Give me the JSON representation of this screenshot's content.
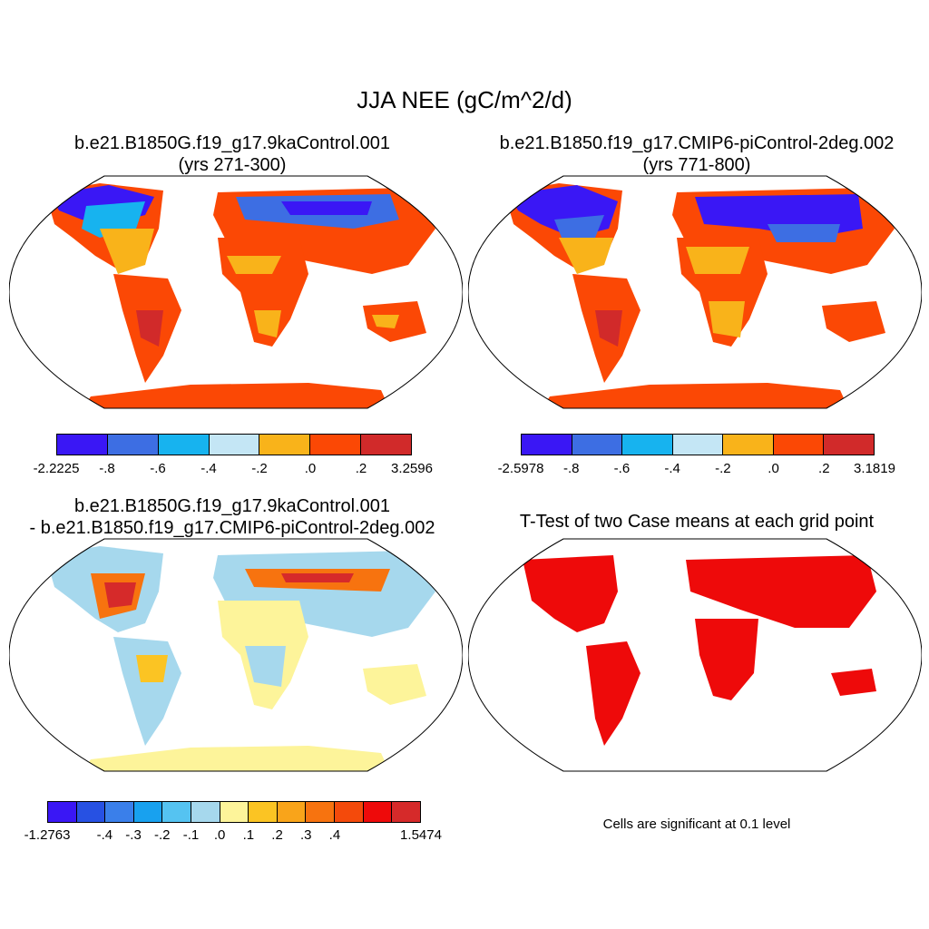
{
  "title": "JJA NEE (gC/m^2/d)",
  "panels": [
    {
      "title_line1": "b.e21.B1850G.f19_g17.9kaControl.001",
      "title_line2": "(yrs 271-300)"
    },
    {
      "title_line1": "b.e21.B1850.f19_g17.CMIP6-piControl-2deg.002",
      "title_line2": "(yrs 771-800)"
    },
    {
      "title_line1": "b.e21.B1850G.f19_g17.9kaControl.001",
      "title_line2": "- b.e21.B1850.f19_g17.CMIP6-piControl-2deg.002"
    },
    {
      "title_line1": "T-Test of two Case means at each grid point",
      "title_line2": ""
    }
  ],
  "colorbars": [
    {
      "colors": [
        "#3a17f5",
        "#3d6ee3",
        "#17b3ef",
        "#c4e6f5",
        "#f9b31a",
        "#fb4805",
        "#d12a2a"
      ],
      "labels": [
        "-2.2225",
        "-.8",
        "-.6",
        "-.4",
        "-.2",
        ".0",
        ".2",
        "3.2596"
      ]
    },
    {
      "colors": [
        "#3a17f5",
        "#3d6ee3",
        "#17b3ef",
        "#c4e6f5",
        "#f9b31a",
        "#fb4805",
        "#d12a2a"
      ],
      "labels": [
        "-2.5978",
        "-.8",
        "-.6",
        "-.4",
        "-.2",
        ".0",
        ".2",
        "3.1819"
      ]
    },
    {
      "colors": [
        "#3a17f5",
        "#2751e3",
        "#3a7fea",
        "#18a1ef",
        "#55c3f1",
        "#a6d8ed",
        "#fdf49a",
        "#fbc423",
        "#f9a41a",
        "#f7730f",
        "#f44a0b",
        "#ee0a0a",
        "#d62a2a"
      ],
      "labels": [
        "-1.2763",
        "-.4",
        "-.3",
        "-.2",
        "-.1",
        ".0",
        ".1",
        ".2",
        ".3",
        ".4",
        "1.5474"
      ],
      "label_positions": [
        0,
        2,
        3,
        4,
        5,
        6,
        7,
        8,
        9,
        10,
        13
      ]
    }
  ],
  "significance_note": "Cells are significant at 0.1 level",
  "map_colors": {
    "panel1": {
      "north": "#3a17f5",
      "north2": "#3d6ee3",
      "boreal": "#17b3ef",
      "mid": "#fb4805",
      "dry": "#f9b31a",
      "antarctica": "#fb4805"
    },
    "panel2": {
      "north": "#3a17f5",
      "north2": "#3d6ee3",
      "boreal": "#17b3ef",
      "mid": "#fb4805",
      "dry": "#f9b31a",
      "antarctica": "#fb4805"
    },
    "panel3": {
      "base": "#fdf49a",
      "light": "#a6d8ed",
      "orange": "#f7730f",
      "red": "#d62a2a",
      "antarctica": "#fdf49a"
    },
    "panel4": {
      "sig": "#ee0a0a"
    }
  }
}
